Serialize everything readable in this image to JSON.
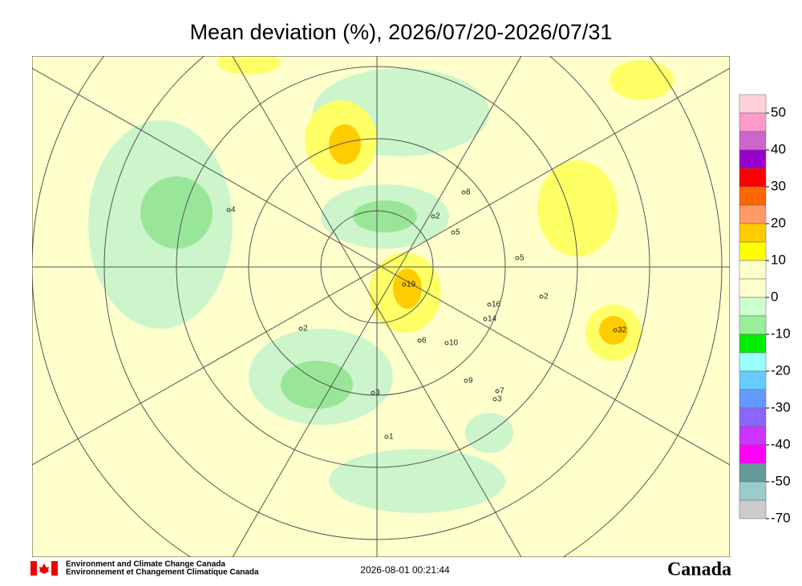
{
  "title": "Mean deviation (%), 2026/07/20-2026/07/31",
  "legend": {
    "colors": [
      "#ffd0d8",
      "#ff99cc",
      "#cc66cc",
      "#9900cc",
      "#ff0000",
      "#ff6600",
      "#ff9966",
      "#ffcc00",
      "#ffff00",
      "#ffffcc",
      "#ffffcc",
      "#ccffcc",
      "#99ee99",
      "#00ee00",
      "#99ffff",
      "#66ccff",
      "#6699ff",
      "#8866ff",
      "#cc33ff",
      "#ff00ff",
      "#669999",
      "#99cccc",
      "#cccccc"
    ],
    "labels": [
      50,
      40,
      30,
      20,
      10,
      0,
      -10,
      -20,
      -30,
      -40,
      -50,
      -70
    ]
  },
  "stations": [
    19,
    32,
    16,
    14,
    10,
    6,
    5,
    5,
    2,
    2,
    3,
    3,
    8,
    7,
    4,
    2,
    1,
    9
  ],
  "footer": {
    "agency_en": "Environment and Climate Change Canada",
    "agency_fr": "Environnement et Changement Climatique Canada",
    "timestamp": "2026-08-01 00:21:44",
    "wordmark": "Canada"
  }
}
